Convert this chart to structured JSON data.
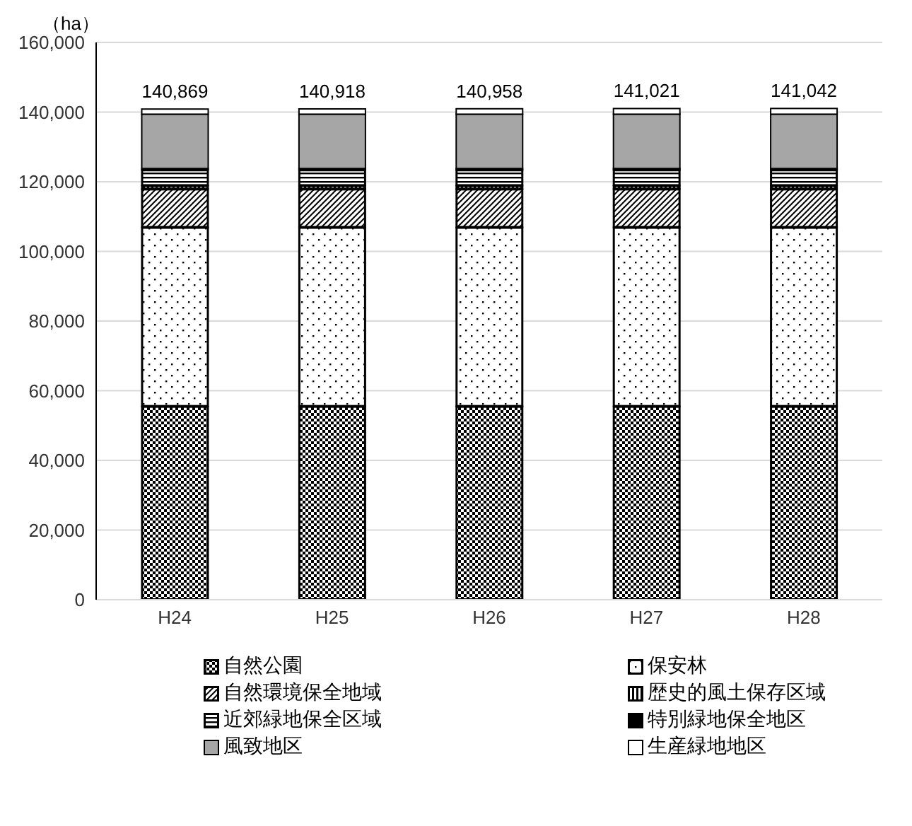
{
  "chart_data": {
    "type": "bar",
    "stacked": true,
    "ylabel": "（ha）",
    "categories": [
      "H24",
      "H25",
      "H26",
      "H27",
      "H28"
    ],
    "series": [
      {
        "name": "自然公園",
        "color": "#000000",
        "values": [
          55500,
          55500,
          55500,
          55500,
          55500
        ]
      },
      {
        "name": "保安林",
        "color": "#000000",
        "values": [
          51400,
          51400,
          51400,
          51400,
          51400
        ]
      },
      {
        "name": "自然環境保全地域",
        "color": "#000000",
        "values": [
          11000,
          11000,
          11000,
          11000,
          11000
        ]
      },
      {
        "name": "歴史的風土保存区域",
        "color": "#000000",
        "values": [
          1000,
          1000,
          1000,
          1000,
          1000
        ]
      },
      {
        "name": "近郊緑地保全区域",
        "color": "#000000",
        "values": [
          4500,
          4500,
          4500,
          4500,
          4500
        ]
      },
      {
        "name": "特別緑地保全地区",
        "color": "#000000",
        "values": [
          400,
          400,
          400,
          400,
          400
        ]
      },
      {
        "name": "風致地区",
        "color": "#a6a6a6",
        "values": [
          15600,
          15600,
          15600,
          15600,
          15600
        ]
      },
      {
        "name": "生産緑地地区",
        "color": "#ffffff",
        "values": [
          1469,
          1518,
          1558,
          1621,
          1642
        ]
      }
    ],
    "totals": [
      "140,869",
      "140,918",
      "140,958",
      "141,021",
      "141,042"
    ],
    "ylim": [
      0,
      160000
    ],
    "yticks": [
      0,
      {
        "value": 20000,
        "label": "20,000"
      },
      {
        "value": 40000,
        "label": "40,000"
      },
      {
        "value": 60000,
        "label": "60,000"
      },
      {
        "value": 80000,
        "label": "80,000"
      },
      {
        "value": 100000,
        "label": "100,000"
      },
      {
        "value": 120000,
        "label": "120,000"
      },
      {
        "value": 140000,
        "label": "140,000"
      },
      {
        "value": 160000,
        "label": "160,000"
      }
    ],
    "grid": "y",
    "legend": "bottom"
  }
}
